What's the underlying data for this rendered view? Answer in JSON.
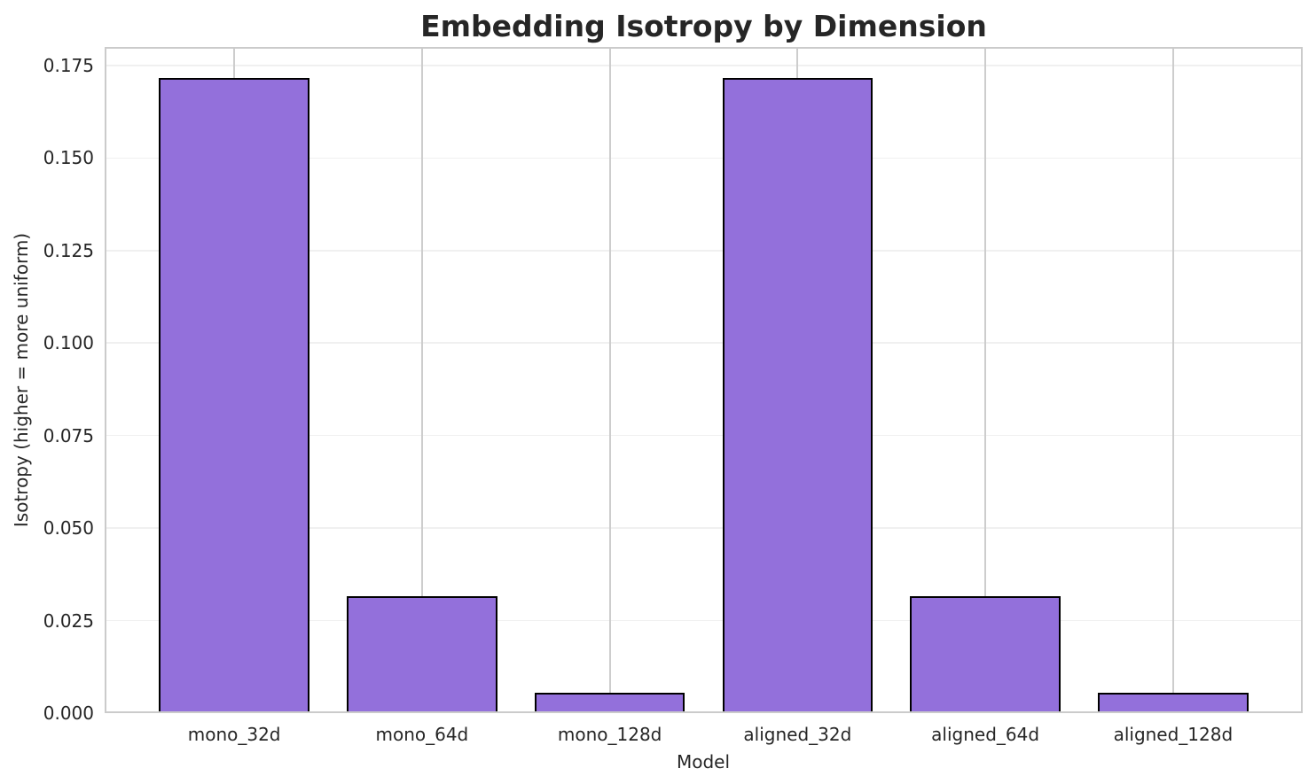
{
  "figure": {
    "title": "Embedding Isotropy by Dimension"
  },
  "colors": {
    "bar_fill": "#9370DB",
    "bar_edge": "#000000",
    "grid_horizontal": "#f0f0f0",
    "grid_vertical": "#cdcdcd",
    "spine": "#cbcbcb",
    "text": "#262626",
    "background": "#ffffff"
  },
  "chart_data": {
    "type": "bar",
    "title": "Embedding Isotropy by Dimension",
    "categories": [
      "mono_32d",
      "mono_64d",
      "mono_128d",
      "aligned_32d",
      "aligned_64d",
      "aligned_128d"
    ],
    "values": [
      0.1716,
      0.0316,
      0.0056,
      0.1716,
      0.0316,
      0.0056
    ],
    "xlabel": "Model",
    "ylabel": "Isotropy (higher = more uniform)",
    "ylim": [
      0,
      0.18
    ],
    "yticks": [
      0.0,
      0.025,
      0.05,
      0.075,
      0.1,
      0.125,
      0.15,
      0.175
    ],
    "ytick_labels": [
      "0.000",
      "0.025",
      "0.050",
      "0.075",
      "0.100",
      "0.125",
      "0.150",
      "0.175"
    ],
    "bar_rel_width": 0.8,
    "grid": "on",
    "legend": "none"
  }
}
